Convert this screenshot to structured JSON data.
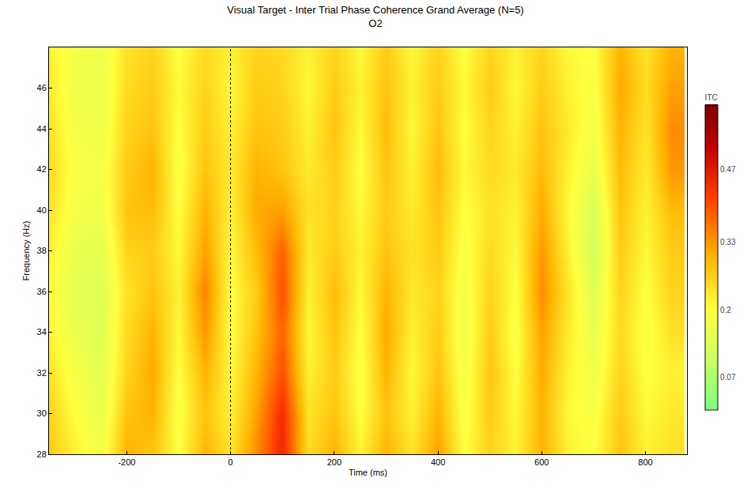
{
  "chart_data": {
    "type": "heatmap",
    "title": "Visual Target - Inter Trial Phase Coherence Grand Average (N=5)",
    "subtitle": "O2",
    "x_label": "Time (ms)",
    "y_label": "Frequency (Hz)",
    "x": [
      -350,
      -300,
      -250,
      -200,
      -150,
      -100,
      -50,
      0,
      50,
      100,
      150,
      200,
      250,
      300,
      350,
      400,
      450,
      500,
      550,
      600,
      650,
      700,
      750,
      800,
      850
    ],
    "y": [
      28,
      30,
      32,
      34,
      36,
      38,
      40,
      42,
      44,
      46,
      48
    ],
    "cells": [
      [
        0.27,
        0.22,
        0.18,
        0.3,
        0.28,
        0.2,
        0.3,
        0.24,
        0.34,
        0.45,
        0.25,
        0.3,
        0.22,
        0.3,
        0.24,
        0.32,
        0.2,
        0.26,
        0.22,
        0.3,
        0.22,
        0.2,
        0.28,
        0.22,
        0.24
      ],
      [
        0.26,
        0.2,
        0.16,
        0.28,
        0.3,
        0.19,
        0.28,
        0.22,
        0.32,
        0.44,
        0.24,
        0.28,
        0.2,
        0.28,
        0.22,
        0.3,
        0.19,
        0.27,
        0.21,
        0.3,
        0.21,
        0.19,
        0.27,
        0.21,
        0.23
      ],
      [
        0.24,
        0.18,
        0.15,
        0.26,
        0.31,
        0.2,
        0.3,
        0.21,
        0.3,
        0.4,
        0.22,
        0.27,
        0.19,
        0.3,
        0.21,
        0.28,
        0.18,
        0.28,
        0.2,
        0.31,
        0.22,
        0.17,
        0.26,
        0.2,
        0.22
      ],
      [
        0.22,
        0.16,
        0.14,
        0.25,
        0.3,
        0.21,
        0.33,
        0.2,
        0.28,
        0.38,
        0.21,
        0.28,
        0.2,
        0.31,
        0.22,
        0.27,
        0.17,
        0.27,
        0.19,
        0.32,
        0.23,
        0.16,
        0.25,
        0.19,
        0.24
      ],
      [
        0.2,
        0.15,
        0.14,
        0.24,
        0.28,
        0.22,
        0.35,
        0.2,
        0.27,
        0.4,
        0.22,
        0.29,
        0.21,
        0.3,
        0.23,
        0.26,
        0.18,
        0.26,
        0.2,
        0.34,
        0.24,
        0.14,
        0.26,
        0.2,
        0.26
      ],
      [
        0.22,
        0.16,
        0.15,
        0.26,
        0.27,
        0.21,
        0.32,
        0.21,
        0.29,
        0.38,
        0.23,
        0.27,
        0.22,
        0.28,
        0.24,
        0.27,
        0.19,
        0.25,
        0.21,
        0.33,
        0.22,
        0.12,
        0.27,
        0.21,
        0.27
      ],
      [
        0.24,
        0.18,
        0.17,
        0.28,
        0.29,
        0.2,
        0.3,
        0.22,
        0.31,
        0.32,
        0.24,
        0.26,
        0.21,
        0.27,
        0.23,
        0.28,
        0.2,
        0.24,
        0.22,
        0.31,
        0.21,
        0.13,
        0.28,
        0.22,
        0.29
      ],
      [
        0.25,
        0.19,
        0.18,
        0.27,
        0.3,
        0.19,
        0.28,
        0.23,
        0.3,
        0.28,
        0.23,
        0.27,
        0.2,
        0.28,
        0.22,
        0.29,
        0.21,
        0.25,
        0.23,
        0.29,
        0.22,
        0.16,
        0.29,
        0.23,
        0.33
      ],
      [
        0.24,
        0.18,
        0.17,
        0.26,
        0.28,
        0.2,
        0.27,
        0.22,
        0.28,
        0.27,
        0.22,
        0.28,
        0.21,
        0.29,
        0.21,
        0.28,
        0.2,
        0.26,
        0.22,
        0.28,
        0.23,
        0.18,
        0.3,
        0.24,
        0.34
      ],
      [
        0.23,
        0.17,
        0.16,
        0.25,
        0.27,
        0.21,
        0.26,
        0.21,
        0.27,
        0.26,
        0.21,
        0.27,
        0.22,
        0.28,
        0.22,
        0.27,
        0.21,
        0.27,
        0.21,
        0.27,
        0.22,
        0.19,
        0.31,
        0.25,
        0.32
      ],
      [
        0.22,
        0.18,
        0.17,
        0.24,
        0.26,
        0.2,
        0.25,
        0.22,
        0.26,
        0.25,
        0.22,
        0.26,
        0.21,
        0.27,
        0.21,
        0.26,
        0.2,
        0.26,
        0.22,
        0.26,
        0.21,
        0.2,
        0.3,
        0.24,
        0.3
      ]
    ],
    "xlim": [
      -350,
      880
    ],
    "xticks": [
      -200,
      0,
      200,
      400,
      600,
      800
    ],
    "ylim": [
      28,
      48
    ],
    "yticks": [
      28,
      30,
      32,
      34,
      36,
      38,
      40,
      42,
      44,
      46
    ],
    "vlines": [
      0
    ],
    "colorbar_title": "ITC",
    "zlim": [
      0.008,
      0.595
    ],
    "zticks": [
      0.07,
      0.2,
      0.33,
      0.47
    ],
    "grid": false
  }
}
